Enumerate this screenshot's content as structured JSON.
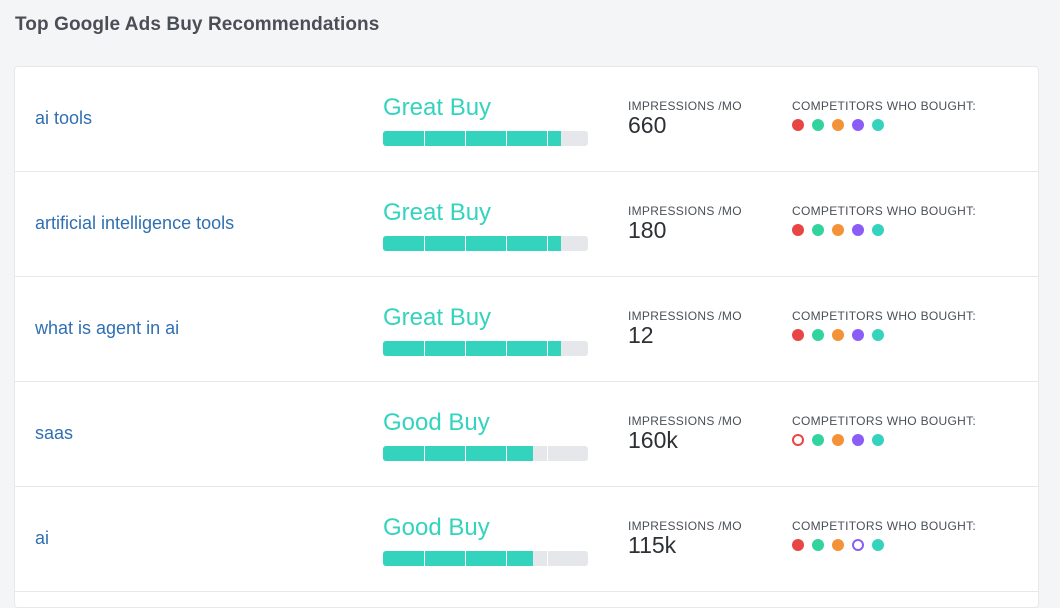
{
  "section": {
    "title": "Top Google Ads Buy Recommendations"
  },
  "colors": {
    "accent": "#33d3be",
    "link": "#2f6fb2",
    "competitors": [
      "#e84545",
      "#33d3a0",
      "#f39237",
      "#8b5cf6",
      "#33d3be"
    ]
  },
  "labels": {
    "impressions": "IMPRESSIONS /MO",
    "competitors": "COMPETITORS WHO BOUGHT:"
  },
  "rows": [
    {
      "keyword": "ai tools",
      "rating": "Great Buy",
      "score": 0.87,
      "impressions": "660",
      "competitors": [
        {
          "color": "#e84545",
          "hollow": false
        },
        {
          "color": "#33d3a0",
          "hollow": false
        },
        {
          "color": "#f39237",
          "hollow": false
        },
        {
          "color": "#8b5cf6",
          "hollow": false
        },
        {
          "color": "#33d3be",
          "hollow": false
        }
      ]
    },
    {
      "keyword": "artificial intelligence tools",
      "rating": "Great Buy",
      "score": 0.87,
      "impressions": "180",
      "competitors": [
        {
          "color": "#e84545",
          "hollow": false
        },
        {
          "color": "#33d3a0",
          "hollow": false
        },
        {
          "color": "#f39237",
          "hollow": false
        },
        {
          "color": "#8b5cf6",
          "hollow": false
        },
        {
          "color": "#33d3be",
          "hollow": false
        }
      ]
    },
    {
      "keyword": "what is agent in ai",
      "rating": "Great Buy",
      "score": 0.87,
      "impressions": "12",
      "competitors": [
        {
          "color": "#e84545",
          "hollow": false
        },
        {
          "color": "#33d3a0",
          "hollow": false
        },
        {
          "color": "#f39237",
          "hollow": false
        },
        {
          "color": "#8b5cf6",
          "hollow": false
        },
        {
          "color": "#33d3be",
          "hollow": false
        }
      ]
    },
    {
      "keyword": "saas",
      "rating": "Good Buy",
      "score": 0.73,
      "impressions": "160k",
      "competitors": [
        {
          "color": "#e84545",
          "hollow": true
        },
        {
          "color": "#33d3a0",
          "hollow": false
        },
        {
          "color": "#f39237",
          "hollow": false
        },
        {
          "color": "#8b5cf6",
          "hollow": false
        },
        {
          "color": "#33d3be",
          "hollow": false
        }
      ]
    },
    {
      "keyword": "ai",
      "rating": "Good Buy",
      "score": 0.73,
      "impressions": "115k",
      "competitors": [
        {
          "color": "#e84545",
          "hollow": false
        },
        {
          "color": "#33d3a0",
          "hollow": false
        },
        {
          "color": "#f39237",
          "hollow": false
        },
        {
          "color": "#8b5cf6",
          "hollow": true
        },
        {
          "color": "#33d3be",
          "hollow": false
        }
      ]
    }
  ]
}
